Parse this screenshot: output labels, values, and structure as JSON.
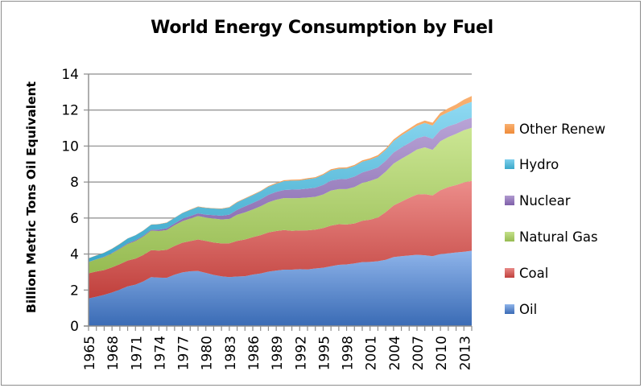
{
  "chart_data": {
    "type": "area",
    "stacked": true,
    "title": "World Energy Consumption by Fuel",
    "xlabel": "",
    "ylabel": "Billion Metric Tons Oil Equivalent",
    "ylim": [
      0,
      14
    ],
    "yticks": [
      0,
      2,
      4,
      6,
      8,
      10,
      12,
      14
    ],
    "grid": true,
    "legend_position": "right",
    "x": [
      1965,
      1966,
      1967,
      1968,
      1969,
      1970,
      1971,
      1972,
      1973,
      1974,
      1975,
      1976,
      1977,
      1978,
      1979,
      1980,
      1981,
      1982,
      1983,
      1984,
      1985,
      1986,
      1987,
      1988,
      1989,
      1990,
      1991,
      1992,
      1993,
      1994,
      1995,
      1996,
      1997,
      1998,
      1999,
      2000,
      2001,
      2002,
      2003,
      2004,
      2005,
      2006,
      2007,
      2008,
      2009,
      2010,
      2011,
      2012,
      2013,
      2014
    ],
    "xtick_labels": [
      "1965",
      "1968",
      "1971",
      "1974",
      "1977",
      "1980",
      "1983",
      "1986",
      "1989",
      "1992",
      "1995",
      "1998",
      "2001",
      "2004",
      "2007",
      "2010",
      "2013"
    ],
    "series": [
      {
        "name": "Oil",
        "color_top": "#8eb4ea",
        "color_bottom": "#3a6bb5",
        "values": [
          1.53,
          1.63,
          1.73,
          1.86,
          2.02,
          2.2,
          2.3,
          2.48,
          2.72,
          2.69,
          2.68,
          2.85,
          2.98,
          3.04,
          3.06,
          2.95,
          2.84,
          2.76,
          2.72,
          2.75,
          2.77,
          2.86,
          2.92,
          3.02,
          3.08,
          3.13,
          3.13,
          3.16,
          3.14,
          3.2,
          3.24,
          3.32,
          3.4,
          3.42,
          3.48,
          3.55,
          3.56,
          3.6,
          3.68,
          3.83,
          3.88,
          3.92,
          3.96,
          3.93,
          3.88,
          4.0,
          4.04,
          4.09,
          4.13,
          4.18
        ]
      },
      {
        "name": "Coal",
        "color_top": "#ec8d8a",
        "color_bottom": "#c0403c",
        "values": [
          1.4,
          1.4,
          1.38,
          1.4,
          1.42,
          1.44,
          1.45,
          1.47,
          1.5,
          1.5,
          1.55,
          1.6,
          1.65,
          1.68,
          1.75,
          1.78,
          1.8,
          1.83,
          1.88,
          1.98,
          2.04,
          2.08,
          2.13,
          2.18,
          2.2,
          2.2,
          2.16,
          2.15,
          2.18,
          2.16,
          2.2,
          2.26,
          2.26,
          2.22,
          2.22,
          2.3,
          2.35,
          2.43,
          2.65,
          2.87,
          3.03,
          3.2,
          3.35,
          3.4,
          3.38,
          3.55,
          3.68,
          3.74,
          3.85,
          3.88
        ]
      },
      {
        "name": "Natural Gas",
        "color_top": "#cbe693",
        "color_bottom": "#96bb52",
        "values": [
          0.62,
          0.67,
          0.72,
          0.78,
          0.85,
          0.92,
          0.97,
          1.02,
          1.08,
          1.09,
          1.1,
          1.15,
          1.2,
          1.25,
          1.3,
          1.3,
          1.33,
          1.33,
          1.35,
          1.45,
          1.5,
          1.53,
          1.6,
          1.67,
          1.74,
          1.78,
          1.81,
          1.8,
          1.82,
          1.82,
          1.87,
          1.95,
          1.95,
          1.97,
          2.02,
          2.1,
          2.15,
          2.18,
          2.25,
          2.32,
          2.38,
          2.42,
          2.5,
          2.6,
          2.53,
          2.72,
          2.78,
          2.85,
          2.9,
          2.95
        ]
      },
      {
        "name": "Nuclear",
        "color_top": "#b9a4d6",
        "color_bottom": "#7e5fa8",
        "values": [
          0.01,
          0.01,
          0.02,
          0.02,
          0.03,
          0.04,
          0.05,
          0.05,
          0.05,
          0.08,
          0.1,
          0.1,
          0.13,
          0.14,
          0.15,
          0.16,
          0.19,
          0.21,
          0.24,
          0.28,
          0.34,
          0.37,
          0.39,
          0.42,
          0.43,
          0.45,
          0.48,
          0.48,
          0.5,
          0.51,
          0.53,
          0.55,
          0.55,
          0.56,
          0.58,
          0.58,
          0.6,
          0.6,
          0.6,
          0.62,
          0.63,
          0.63,
          0.62,
          0.62,
          0.61,
          0.62,
          0.6,
          0.56,
          0.56,
          0.57
        ]
      },
      {
        "name": "Hydro",
        "color_top": "#8fd9f2",
        "color_bottom": "#3aa7c9",
        "values": [
          0.2,
          0.21,
          0.22,
          0.23,
          0.24,
          0.26,
          0.27,
          0.28,
          0.28,
          0.3,
          0.31,
          0.31,
          0.32,
          0.34,
          0.36,
          0.37,
          0.37,
          0.38,
          0.4,
          0.41,
          0.42,
          0.43,
          0.44,
          0.45,
          0.46,
          0.49,
          0.5,
          0.5,
          0.52,
          0.53,
          0.56,
          0.57,
          0.58,
          0.58,
          0.59,
          0.6,
          0.59,
          0.6,
          0.6,
          0.64,
          0.67,
          0.69,
          0.7,
          0.73,
          0.74,
          0.78,
          0.79,
          0.83,
          0.86,
          0.88
        ]
      },
      {
        "name": "Other Renew",
        "color_top": "#f9b070",
        "color_bottom": "#ef8b3a",
        "values": [
          0.01,
          0.01,
          0.01,
          0.01,
          0.01,
          0.01,
          0.01,
          0.01,
          0.01,
          0.01,
          0.01,
          0.01,
          0.01,
          0.02,
          0.02,
          0.02,
          0.02,
          0.02,
          0.02,
          0.03,
          0.03,
          0.03,
          0.03,
          0.04,
          0.04,
          0.05,
          0.05,
          0.05,
          0.05,
          0.05,
          0.05,
          0.06,
          0.06,
          0.06,
          0.06,
          0.07,
          0.07,
          0.08,
          0.08,
          0.09,
          0.1,
          0.11,
          0.12,
          0.14,
          0.16,
          0.18,
          0.21,
          0.24,
          0.28,
          0.32
        ]
      }
    ]
  },
  "legend": {
    "items": [
      {
        "label": "Other Renew",
        "color": "#f79646"
      },
      {
        "label": "Hydro",
        "color": "#4bacc6"
      },
      {
        "label": "Nuclear",
        "color": "#8064a2"
      },
      {
        "label": "Natural Gas",
        "color": "#9bbb59"
      },
      {
        "label": "Coal",
        "color": "#c0504d"
      },
      {
        "label": "Oil",
        "color": "#4f81bd"
      }
    ]
  }
}
